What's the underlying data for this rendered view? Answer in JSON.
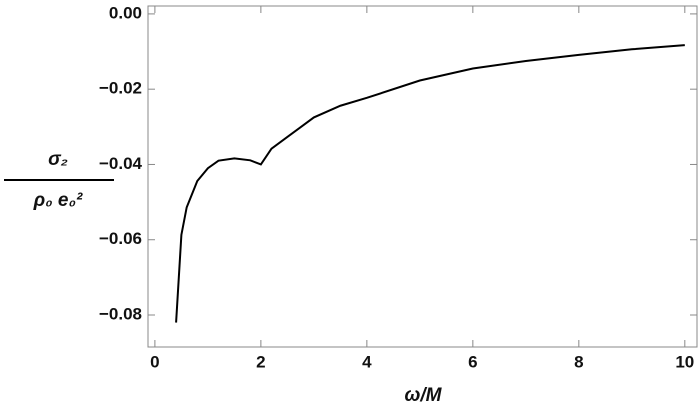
{
  "chart_data": {
    "type": "line",
    "x_label": "ω/M",
    "y_label": {
      "numerator": "σ₂",
      "denominator": "ρ₀ e₀²"
    },
    "series": [
      {
        "color": "#000000",
        "x": [
          0.4,
          0.5,
          0.6,
          0.8,
          1.0,
          1.2,
          1.5,
          1.8,
          2.0,
          2.2,
          2.5,
          3.0,
          3.5,
          4.0,
          5.0,
          6.0,
          7.0,
          8.0,
          9.0,
          10.0
        ],
        "values": [
          -0.082,
          -0.0587,
          -0.0514,
          -0.0444,
          -0.041,
          -0.039,
          -0.0384,
          -0.0389,
          -0.04,
          -0.0358,
          -0.0327,
          -0.0275,
          -0.0244,
          -0.0223,
          -0.0177,
          -0.0145,
          -0.0125,
          -0.0109,
          -0.0094,
          -0.0083
        ]
      }
    ],
    "xlim": [
      -0.13,
      10.23
    ],
    "ylim": [
      -0.0885,
      0.0021
    ],
    "xticks": [
      0,
      2,
      4,
      6,
      8,
      10
    ],
    "yticks": [
      {
        "value": 0,
        "label": "0.00"
      },
      {
        "value": -0.02,
        "label": "−0.02"
      },
      {
        "value": -0.04,
        "label": "−0.04"
      },
      {
        "value": -0.06,
        "label": "−0.06"
      },
      {
        "value": -0.08,
        "label": "−0.08"
      }
    ]
  }
}
